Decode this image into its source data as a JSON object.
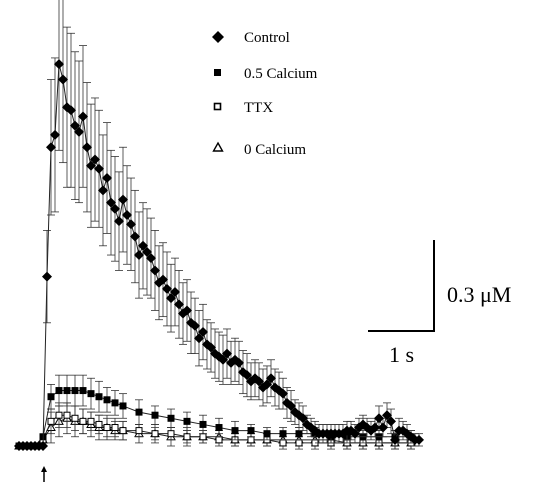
{
  "chart_data": {
    "type": "line",
    "title": "",
    "xlabel": "",
    "ylabel": "",
    "legend_placement": "top-center",
    "grid": false,
    "scale_bars": {
      "vertical": {
        "value": 0.3,
        "label": "0.3 μM"
      },
      "horizontal": {
        "value": 1,
        "label": "1 s"
      }
    },
    "stimulus_marker": {
      "time_s": 0.0
    },
    "x_range_s": [
      -0.3,
      5.0
    ],
    "series": [
      {
        "name": "Control",
        "marker": "filled-diamond",
        "x": [
          -0.3,
          -0.25,
          -0.2,
          -0.15,
          -0.1,
          -0.05,
          0.0,
          0.05,
          0.1,
          0.15,
          0.2,
          0.25,
          0.3,
          0.35,
          0.4,
          0.45,
          0.5,
          0.55,
          0.6,
          0.65,
          0.7,
          0.75,
          0.8,
          0.85,
          0.9,
          0.95,
          1.0,
          1.05,
          1.1,
          1.15,
          1.2,
          1.25,
          1.3,
          1.35,
          1.4,
          1.45,
          1.5,
          1.55,
          1.6,
          1.65,
          1.7,
          1.75,
          1.8,
          1.85,
          1.9,
          1.95,
          2.0,
          2.05,
          2.1,
          2.15,
          2.2,
          2.25,
          2.3,
          2.35,
          2.4,
          2.45,
          2.5,
          2.55,
          2.6,
          2.65,
          2.7,
          2.75,
          2.8,
          2.85,
          2.9,
          2.95,
          3.0,
          3.05,
          3.1,
          3.15,
          3.2,
          3.25,
          3.3,
          3.35,
          3.4,
          3.45,
          3.5,
          3.55,
          3.6,
          3.65,
          3.7,
          3.75,
          3.8,
          3.85,
          3.9,
          3.95,
          4.0,
          4.05,
          4.1,
          4.15,
          4.2,
          4.25,
          4.3,
          4.35,
          4.4,
          4.45,
          4.5,
          4.55,
          4.6,
          4.65,
          4.7
        ],
        "y": [
          0,
          0,
          0,
          0,
          0,
          0,
          0,
          0.55,
          0.97,
          1.01,
          1.24,
          1.19,
          1.1,
          1.09,
          1.04,
          1.02,
          1.07,
          0.97,
          0.91,
          0.93,
          0.9,
          0.83,
          0.87,
          0.79,
          0.77,
          0.73,
          0.8,
          0.75,
          0.72,
          0.68,
          0.62,
          0.65,
          0.63,
          0.61,
          0.57,
          0.53,
          0.54,
          0.51,
          0.48,
          0.5,
          0.46,
          0.43,
          0.44,
          0.4,
          0.39,
          0.35,
          0.37,
          0.33,
          0.32,
          0.3,
          0.29,
          0.28,
          0.3,
          0.27,
          0.28,
          0.27,
          0.24,
          0.23,
          0.21,
          0.22,
          0.21,
          0.19,
          0.2,
          0.22,
          0.19,
          0.18,
          0.17,
          0.14,
          0.13,
          0.11,
          0.1,
          0.09,
          0.07,
          0.06,
          0.05,
          0.04,
          0.04,
          0.04,
          0.04,
          0.04,
          0.04,
          0.04,
          0.05,
          0.05,
          0.04,
          0.06,
          0.07,
          0.06,
          0.05,
          0.06,
          0.09,
          0.06,
          0.1,
          0.08,
          0.02,
          0.05,
          0.05,
          0.04,
          0.03,
          0.02,
          0.02
        ],
        "error": [
          0,
          0,
          0,
          0,
          0,
          0,
          0,
          0.15,
          0.22,
          0.25,
          0.28,
          0.27,
          0.26,
          0.25,
          0.24,
          0.23,
          0.23,
          0.21,
          0.2,
          0.2,
          0.19,
          0.18,
          0.18,
          0.17,
          0.17,
          0.16,
          0.17,
          0.16,
          0.15,
          0.15,
          0.14,
          0.14,
          0.14,
          0.13,
          0.13,
          0.12,
          0.12,
          0.12,
          0.11,
          0.11,
          0.11,
          0.1,
          0.1,
          0.1,
          0.09,
          0.09,
          0.09,
          0.08,
          0.08,
          0.08,
          0.08,
          0.08,
          0.08,
          0.07,
          0.07,
          0.07,
          0.07,
          0.07,
          0.06,
          0.06,
          0.06,
          0.06,
          0.06,
          0.06,
          0.06,
          0.06,
          0.05,
          0.05,
          0.05,
          0.04,
          0.04,
          0.04,
          0.03,
          0.03,
          0.03,
          0.03,
          0.03,
          0.03,
          0.03,
          0.03,
          0.03,
          0.03,
          0.03,
          0.03,
          0.03,
          0.03,
          0.03,
          0.03,
          0.03,
          0.03,
          0.04,
          0.03,
          0.04,
          0.04,
          0.03,
          0.04,
          0.03,
          0.03,
          0.02,
          0.02,
          0.02
        ]
      },
      {
        "name": "0.5 Calcium",
        "marker": "filled-square",
        "x": [
          -0.3,
          -0.2,
          -0.1,
          0.0,
          0.1,
          0.2,
          0.3,
          0.4,
          0.5,
          0.6,
          0.7,
          0.8,
          0.9,
          1.0,
          1.2,
          1.4,
          1.6,
          1.8,
          2.0,
          2.2,
          2.4,
          2.6,
          2.8,
          3.0,
          3.2,
          3.4,
          3.6,
          3.8,
          4.0,
          4.2,
          4.4,
          4.6
        ],
        "y": [
          0,
          0,
          0,
          0.03,
          0.16,
          0.18,
          0.18,
          0.18,
          0.18,
          0.17,
          0.16,
          0.15,
          0.14,
          0.13,
          0.11,
          0.1,
          0.09,
          0.08,
          0.07,
          0.06,
          0.05,
          0.05,
          0.04,
          0.04,
          0.04,
          0.04,
          0.03,
          0.03,
          0.03,
          0.03,
          0.03,
          0.03
        ],
        "error": [
          0,
          0,
          0,
          0,
          0.04,
          0.05,
          0.05,
          0.05,
          0.05,
          0.05,
          0.05,
          0.04,
          0.04,
          0.04,
          0.04,
          0.03,
          0.03,
          0.03,
          0.03,
          0.03,
          0.03,
          0.02,
          0.02,
          0.02,
          0.02,
          0.02,
          0.02,
          0.02,
          0.02,
          0.02,
          0.02,
          0.02
        ]
      },
      {
        "name": "TTX",
        "marker": "open-square",
        "x": [
          -0.3,
          -0.2,
          -0.1,
          0.0,
          0.1,
          0.2,
          0.3,
          0.4,
          0.5,
          0.6,
          0.7,
          0.8,
          0.9,
          1.0,
          1.2,
          1.4,
          1.6,
          1.8,
          2.0,
          2.2,
          2.4,
          2.6,
          2.8,
          3.0,
          3.2,
          3.4,
          3.6,
          3.8,
          4.0,
          4.2,
          4.4,
          4.6
        ],
        "y": [
          0,
          0,
          0,
          0.02,
          0.08,
          0.1,
          0.1,
          0.09,
          0.08,
          0.08,
          0.07,
          0.06,
          0.06,
          0.05,
          0.05,
          0.04,
          0.04,
          0.03,
          0.03,
          0.02,
          0.02,
          0.02,
          0.02,
          0.01,
          0.01,
          0.01,
          0.01,
          0.01,
          0.01,
          0.01,
          0.01,
          0.01
        ],
        "error": [
          0,
          0,
          0,
          0,
          0.04,
          0.04,
          0.04,
          0.04,
          0.04,
          0.03,
          0.03,
          0.03,
          0.03,
          0.03,
          0.02,
          0.02,
          0.02,
          0.02,
          0.02,
          0.02,
          0.02,
          0.02,
          0.02,
          0.02,
          0.02,
          0.02,
          0.02,
          0.02,
          0.02,
          0.02,
          0.02,
          0.02
        ]
      },
      {
        "name": "0 Calcium",
        "marker": "open-triangle",
        "x": [
          -0.3,
          -0.2,
          -0.1,
          0.0,
          0.1,
          0.2,
          0.3,
          0.4,
          0.5,
          0.6,
          0.7,
          0.8,
          0.9,
          1.0,
          1.2,
          1.4,
          1.6,
          1.8,
          2.0,
          2.2,
          2.4,
          2.6,
          2.8,
          3.0,
          3.2,
          3.4,
          3.6,
          3.8,
          4.0,
          4.2,
          4.4,
          4.6
        ],
        "y": [
          0,
          0,
          0,
          0.02,
          0.06,
          0.08,
          0.09,
          0.08,
          0.08,
          0.07,
          0.06,
          0.06,
          0.05,
          0.05,
          0.04,
          0.04,
          0.03,
          0.03,
          0.03,
          0.03,
          0.02,
          0.02,
          0.02,
          0.02,
          0.02,
          0.02,
          0.02,
          0.01,
          0.01,
          0.01,
          0.01,
          0.01
        ],
        "error": [
          0,
          0,
          0,
          0,
          0.05,
          0.05,
          0.05,
          0.05,
          0.04,
          0.04,
          0.04,
          0.04,
          0.03,
          0.03,
          0.03,
          0.03,
          0.03,
          0.03,
          0.02,
          0.02,
          0.02,
          0.02,
          0.02,
          0.02,
          0.02,
          0.02,
          0.02,
          0.02,
          0.02,
          0.02,
          0.02,
          0.02
        ]
      }
    ]
  }
}
